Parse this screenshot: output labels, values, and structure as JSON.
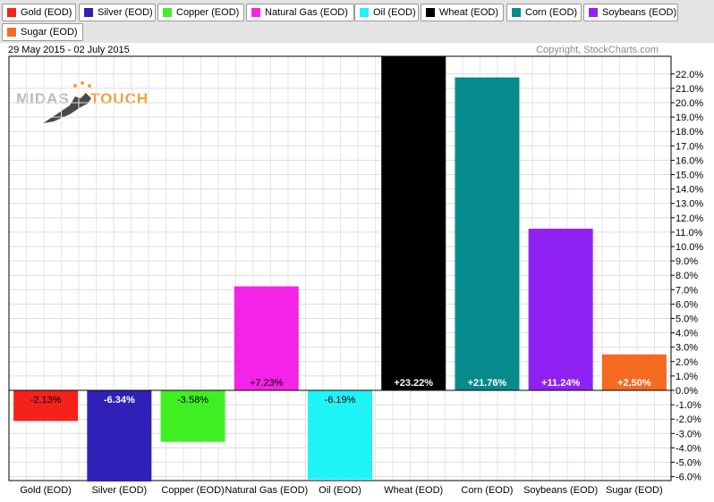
{
  "legend": [
    {
      "label": "Gold (EOD)",
      "color": "#f5221c"
    },
    {
      "label": "Silver (EOD)",
      "color": "#3120b8"
    },
    {
      "label": "Copper (EOD)",
      "color": "#3fef22"
    },
    {
      "label": "Natural Gas (EOD)",
      "color": "#f523e8"
    },
    {
      "label": "Oil (EOD)",
      "color": "#1ef3f5"
    },
    {
      "label": "Wheat (EOD)",
      "color": "#000000"
    },
    {
      "label": "Corn (EOD)",
      "color": "#078a8c"
    },
    {
      "label": "Soybeans (EOD)",
      "color": "#8f22f2"
    },
    {
      "label": "Sugar (EOD)",
      "color": "#f56a21"
    }
  ],
  "header": {
    "date_range": "29 May 2015 - 02 July 2015",
    "copyright": "Copyright, StockCharts.com"
  },
  "logo": {
    "word1": "MIDAS",
    "word2": "TOUCH"
  },
  "chart_data": {
    "type": "bar",
    "categories": [
      "Gold (EOD)",
      "Silver (EOD)",
      "Copper (EOD)",
      "Natural Gas (EOD)",
      "Oil (EOD)",
      "Wheat (EOD)",
      "Corn (EOD)",
      "Soybeans (EOD)",
      "Sugar (EOD)"
    ],
    "values": [
      -2.13,
      -6.34,
      -3.58,
      7.23,
      -6.19,
      23.22,
      21.76,
      11.24,
      2.5
    ],
    "value_labels": [
      "-2.13%",
      "-6.34%",
      "-3.58%",
      "+7.23%",
      "-6.19%",
      "+23.22%",
      "+21.76%",
      "+11.24%",
      "+2.50%"
    ],
    "colors": [
      "#f5221c",
      "#3120b8",
      "#3fef22",
      "#f523e8",
      "#1ef3f5",
      "#000000",
      "#078a8c",
      "#8f22f2",
      "#f56a21"
    ],
    "label_colors": [
      "#000000",
      "#ffffff",
      "#000000",
      "#000000",
      "#000000",
      "#ffffff",
      "#ffffff",
      "#ffffff",
      "#ffffff"
    ],
    "y_ticks": [
      22.0,
      21.0,
      20.0,
      19.0,
      18.0,
      17.0,
      16.0,
      15.0,
      14.0,
      13.0,
      12.0,
      11.0,
      10.0,
      9.0,
      8.0,
      7.0,
      6.0,
      5.0,
      4.0,
      3.0,
      2.0,
      1.0,
      0.0,
      -1.0,
      -2.0,
      -3.0,
      -4.0,
      -5.0,
      -6.0
    ],
    "y_tick_labels": [
      "22.0%",
      "21.0%",
      "20.0%",
      "19.0%",
      "18.0%",
      "17.0%",
      "16.0%",
      "15.0%",
      "14.0%",
      "13.0%",
      "12.0%",
      "11.0%",
      "10.0%",
      "9.0%",
      "8.0%",
      "7.0%",
      "6.0%",
      "5.0%",
      "4.0%",
      "3.0%",
      "2.0%",
      "1.0%",
      "0.0%",
      "-1.0%",
      "-2.0%",
      "-3.0%",
      "-4.0%",
      "-5.0%",
      "-6.0%"
    ],
    "ylim": [
      -6.4,
      23.2
    ],
    "y_axis_position": "right",
    "grid": true,
    "legend_position": "top"
  }
}
